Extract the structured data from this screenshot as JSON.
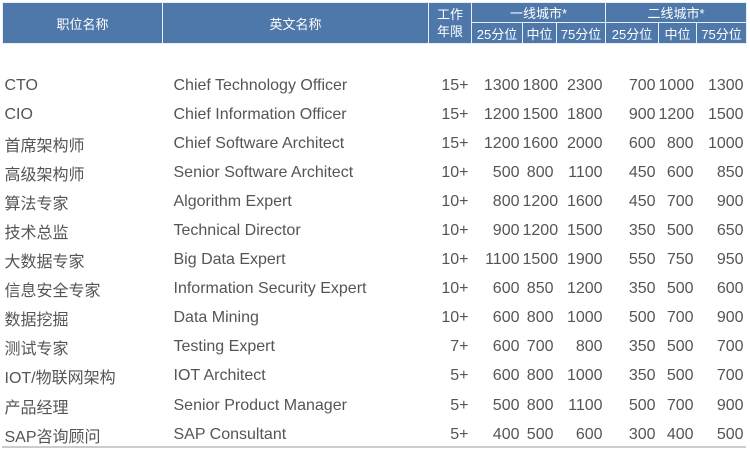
{
  "header": {
    "job_title": "职位名称",
    "english_name": "英文名称",
    "experience": "工作年限",
    "tier1": "一线城市*",
    "tier2": "二线城市*",
    "p25": "25分位",
    "median": "中位",
    "p75": "75分位"
  },
  "rows": [
    [
      "CTO",
      "Chief Technology Officer",
      "15+",
      "1300",
      "1800",
      "2300",
      "700",
      "1000",
      "1300"
    ],
    [
      "CIO",
      "Chief Information Officer",
      "15+",
      "1200",
      "1500",
      "1800",
      "900",
      "1200",
      "1500"
    ],
    [
      "首席架构师",
      "Chief Software Architect",
      "15+",
      "1200",
      "1600",
      "2000",
      "600",
      "800",
      "1000"
    ],
    [
      "高级架构师",
      "Senior Software Architect",
      "10+",
      "500",
      "800",
      "1100",
      "450",
      "600",
      "850"
    ],
    [
      "算法专家",
      "Algorithm Expert",
      "10+",
      "800",
      "1200",
      "1600",
      "450",
      "700",
      "900"
    ],
    [
      "技术总监",
      "Technical Director",
      "10+",
      "900",
      "1200",
      "1500",
      "350",
      "500",
      "650"
    ],
    [
      "大数据专家",
      "Big Data Expert",
      "10+",
      "1100",
      "1500",
      "1900",
      "550",
      "750",
      "950"
    ],
    [
      "信息安全专家",
      "Information Security Expert",
      "10+",
      "600",
      "850",
      "1200",
      "350",
      "500",
      "600"
    ],
    [
      "数据挖掘",
      "Data Mining",
      "10+",
      "600",
      "800",
      "1000",
      "500",
      "700",
      "900"
    ],
    [
      "测试专家",
      "Testing Expert",
      "7+",
      "600",
      "700",
      "800",
      "350",
      "500",
      "700"
    ],
    [
      "IOT/物联网架构",
      "IOT Architect",
      "5+",
      "600",
      "800",
      "1000",
      "350",
      "500",
      "700"
    ],
    [
      "产品经理",
      "Senior Product Manager",
      "5+",
      "500",
      "800",
      "1100",
      "500",
      "700",
      "900"
    ],
    [
      "SAP咨询顾问",
      "SAP Consultant",
      "5+",
      "400",
      "500",
      "600",
      "300",
      "400",
      "500"
    ]
  ],
  "colors": {
    "header_bg": "#4f78aa",
    "text": "#555555"
  }
}
